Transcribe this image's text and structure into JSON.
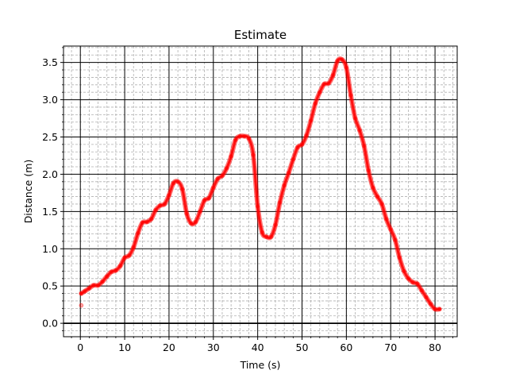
{
  "chart_data": {
    "type": "line",
    "title": "Estimate",
    "xlabel": "Time (s)",
    "ylabel": "Distance (m)",
    "xlim": [
      -3.8,
      85
    ],
    "ylim": [
      -0.18,
      3.72
    ],
    "xticks": [
      0,
      10,
      20,
      30,
      40,
      50,
      60,
      70,
      80
    ],
    "yticks": [
      0.0,
      0.5,
      1.0,
      1.5,
      2.0,
      2.5,
      3.0,
      3.5
    ],
    "xtick_labels": [
      "0",
      "10",
      "20",
      "30",
      "40",
      "50",
      "60",
      "70",
      "80"
    ],
    "ytick_labels": [
      "0.0",
      "0.5",
      "1.0",
      "1.5",
      "2.0",
      "2.5",
      "3.0",
      "3.5"
    ],
    "grid": true,
    "minor_grid": true,
    "hline_at_zero": true,
    "series": [
      {
        "color": "#ff0000",
        "outlier_points": [
          [
            0.2,
            0.24
          ]
        ],
        "x": [
          0.2,
          1,
          2,
          3,
          4,
          5,
          6,
          7,
          8,
          9,
          10,
          11,
          12,
          13,
          14,
          15,
          16,
          17,
          18,
          19,
          20,
          21,
          22,
          23,
          24,
          25,
          26,
          27,
          28,
          29,
          30,
          31,
          32,
          33,
          34,
          35,
          36,
          37,
          38,
          39,
          40,
          41,
          42,
          43,
          44,
          45,
          46,
          47,
          48,
          49,
          50,
          51,
          52,
          53,
          54,
          55,
          56,
          57,
          58,
          59,
          60,
          61,
          62,
          63,
          64,
          65,
          66,
          67,
          68,
          69,
          70,
          71,
          72,
          73,
          74,
          75,
          76,
          77,
          78,
          79,
          80,
          81
        ],
        "y": [
          0.4,
          0.43,
          0.47,
          0.51,
          0.51,
          0.56,
          0.63,
          0.69,
          0.71,
          0.77,
          0.88,
          0.91,
          1.02,
          1.21,
          1.35,
          1.36,
          1.4,
          1.52,
          1.58,
          1.6,
          1.72,
          1.88,
          1.9,
          1.8,
          1.47,
          1.34,
          1.36,
          1.5,
          1.65,
          1.68,
          1.82,
          1.94,
          1.98,
          2.08,
          2.24,
          2.46,
          2.51,
          2.51,
          2.48,
          2.26,
          1.57,
          1.22,
          1.16,
          1.16,
          1.32,
          1.62,
          1.85,
          2.02,
          2.2,
          2.36,
          2.4,
          2.52,
          2.72,
          2.95,
          3.1,
          3.21,
          3.22,
          3.33,
          3.52,
          3.54,
          3.43,
          3.06,
          2.75,
          2.59,
          2.38,
          2.05,
          1.82,
          1.7,
          1.6,
          1.4,
          1.26,
          1.12,
          0.88,
          0.7,
          0.6,
          0.55,
          0.53,
          0.44,
          0.35,
          0.26,
          0.19,
          0.19
        ]
      }
    ]
  }
}
